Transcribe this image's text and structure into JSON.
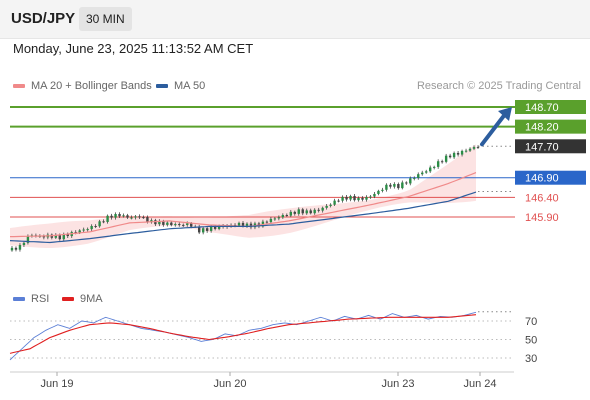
{
  "header": {
    "symbol": "USD/JPY",
    "interval": "30 MIN",
    "datetime": "Monday, June 23, 2025 11:13:52 AM CET"
  },
  "legend": {
    "ma20_label": "MA 20 + Bollinger Bands",
    "ma50_label": "MA 50",
    "ma20_color": "#f08a8a",
    "ma50_color": "#2c5d9e",
    "credit": "Research © 2025 Trading Central"
  },
  "rsi_legend": {
    "rsi_label": "RSI",
    "ma_label": "9MA",
    "rsi_color": "#5b7fd6",
    "ma_color": "#e02020"
  },
  "chart_data": [
    {
      "type": "candlestick",
      "title": "",
      "x_ticks": [
        "Jun 19",
        "Jun 20",
        "Jun 23",
        "Jun 24"
      ],
      "ylim": [
        145.0,
        149.0
      ],
      "current_price": 147.7,
      "levels": [
        {
          "value": 148.7,
          "label": "148.70",
          "kind": "resistance",
          "color": "#5aa02c"
        },
        {
          "value": 148.2,
          "label": "148.20",
          "kind": "resistance",
          "color": "#5aa02c"
        },
        {
          "value": 147.7,
          "label": "147.70",
          "kind": "last",
          "color": "#333333"
        },
        {
          "value": 146.9,
          "label": "146.90",
          "kind": "pivot",
          "color": "#2a66c9"
        },
        {
          "value": 146.4,
          "label": "146.40",
          "kind": "support",
          "color": "#e05050"
        },
        {
          "value": 145.9,
          "label": "145.90",
          "kind": "support",
          "color": "#e05050"
        }
      ],
      "price_path": [
        [
          0,
          145.05
        ],
        [
          5,
          145.15
        ],
        [
          10,
          145.45
        ],
        [
          15,
          145.4
        ],
        [
          20,
          145.42
        ],
        [
          25,
          145.38
        ],
        [
          30,
          145.47
        ],
        [
          35,
          145.55
        ],
        [
          40,
          145.62
        ],
        [
          45,
          145.75
        ],
        [
          50,
          145.92
        ],
        [
          55,
          145.95
        ],
        [
          60,
          145.88
        ],
        [
          65,
          145.92
        ],
        [
          70,
          145.78
        ],
        [
          75,
          145.75
        ],
        [
          80,
          145.72
        ],
        [
          85,
          145.7
        ],
        [
          90,
          145.72
        ],
        [
          95,
          145.55
        ],
        [
          100,
          145.6
        ],
        [
          105,
          145.65
        ],
        [
          110,
          145.68
        ],
        [
          115,
          145.72
        ],
        [
          120,
          145.68
        ],
        [
          125,
          145.7
        ],
        [
          130,
          145.82
        ],
        [
          135,
          145.9
        ],
        [
          140,
          145.98
        ],
        [
          145,
          146.05
        ],
        [
          150,
          146.02
        ],
        [
          155,
          146.08
        ],
        [
          160,
          146.2
        ],
        [
          165,
          146.35
        ],
        [
          170,
          146.4
        ],
        [
          175,
          146.35
        ],
        [
          180,
          146.4
        ],
        [
          185,
          146.55
        ],
        [
          190,
          146.72
        ],
        [
          195,
          146.68
        ],
        [
          200,
          146.82
        ],
        [
          205,
          146.98
        ],
        [
          210,
          147.1
        ],
        [
          215,
          147.28
        ],
        [
          220,
          147.45
        ],
        [
          225,
          147.52
        ],
        [
          230,
          147.62
        ],
        [
          235,
          147.7
        ]
      ],
      "ma20_path": [
        [
          0,
          145.4
        ],
        [
          20,
          145.42
        ],
        [
          40,
          145.52
        ],
        [
          60,
          145.75
        ],
        [
          80,
          145.8
        ],
        [
          100,
          145.7
        ],
        [
          120,
          145.66
        ],
        [
          140,
          145.8
        ],
        [
          160,
          146.0
        ],
        [
          180,
          146.2
        ],
        [
          200,
          146.42
        ],
        [
          220,
          146.75
        ],
        [
          235,
          147.05
        ]
      ],
      "ma50_path": [
        [
          0,
          145.3
        ],
        [
          20,
          145.25
        ],
        [
          40,
          145.35
        ],
        [
          60,
          145.48
        ],
        [
          80,
          145.6
        ],
        [
          100,
          145.66
        ],
        [
          120,
          145.66
        ],
        [
          140,
          145.72
        ],
        [
          160,
          145.85
        ],
        [
          180,
          145.98
        ],
        [
          200,
          146.12
        ],
        [
          220,
          146.3
        ],
        [
          235,
          146.55
        ]
      ],
      "forecast_arrow": {
        "from": 147.75,
        "to": 148.7
      }
    },
    {
      "type": "line",
      "title": "",
      "series_names": [
        "RSI",
        "9MA"
      ],
      "yticks": [
        70,
        50,
        30
      ],
      "ylim": [
        20,
        90
      ],
      "rsi_path": [
        [
          0,
          28
        ],
        [
          6,
          40
        ],
        [
          12,
          52
        ],
        [
          18,
          60
        ],
        [
          24,
          66
        ],
        [
          30,
          62
        ],
        [
          36,
          70
        ],
        [
          42,
          68
        ],
        [
          48,
          74
        ],
        [
          54,
          70
        ],
        [
          60,
          66
        ],
        [
          66,
          62
        ],
        [
          72,
          60
        ],
        [
          78,
          58
        ],
        [
          84,
          55
        ],
        [
          90,
          52
        ],
        [
          96,
          48
        ],
        [
          102,
          50
        ],
        [
          108,
          56
        ],
        [
          114,
          54
        ],
        [
          120,
          60
        ],
        [
          126,
          62
        ],
        [
          132,
          66
        ],
        [
          138,
          68
        ],
        [
          144,
          66
        ],
        [
          150,
          70
        ],
        [
          156,
          74
        ],
        [
          162,
          70
        ],
        [
          168,
          75
        ],
        [
          174,
          72
        ],
        [
          180,
          76
        ],
        [
          186,
          72
        ],
        [
          192,
          78
        ],
        [
          198,
          74
        ],
        [
          204,
          76
        ],
        [
          210,
          72
        ],
        [
          216,
          75
        ],
        [
          222,
          74
        ],
        [
          228,
          76
        ],
        [
          235,
          80
        ]
      ],
      "ma_path": [
        [
          0,
          35
        ],
        [
          10,
          40
        ],
        [
          20,
          52
        ],
        [
          30,
          60
        ],
        [
          40,
          66
        ],
        [
          50,
          68
        ],
        [
          60,
          66
        ],
        [
          70,
          62
        ],
        [
          80,
          57
        ],
        [
          90,
          53
        ],
        [
          100,
          50
        ],
        [
          110,
          53
        ],
        [
          120,
          57
        ],
        [
          130,
          62
        ],
        [
          140,
          66
        ],
        [
          150,
          68
        ],
        [
          160,
          70
        ],
        [
          170,
          72
        ],
        [
          180,
          73
        ],
        [
          190,
          74
        ],
        [
          200,
          74
        ],
        [
          210,
          74
        ],
        [
          220,
          74
        ],
        [
          235,
          77
        ]
      ]
    }
  ]
}
